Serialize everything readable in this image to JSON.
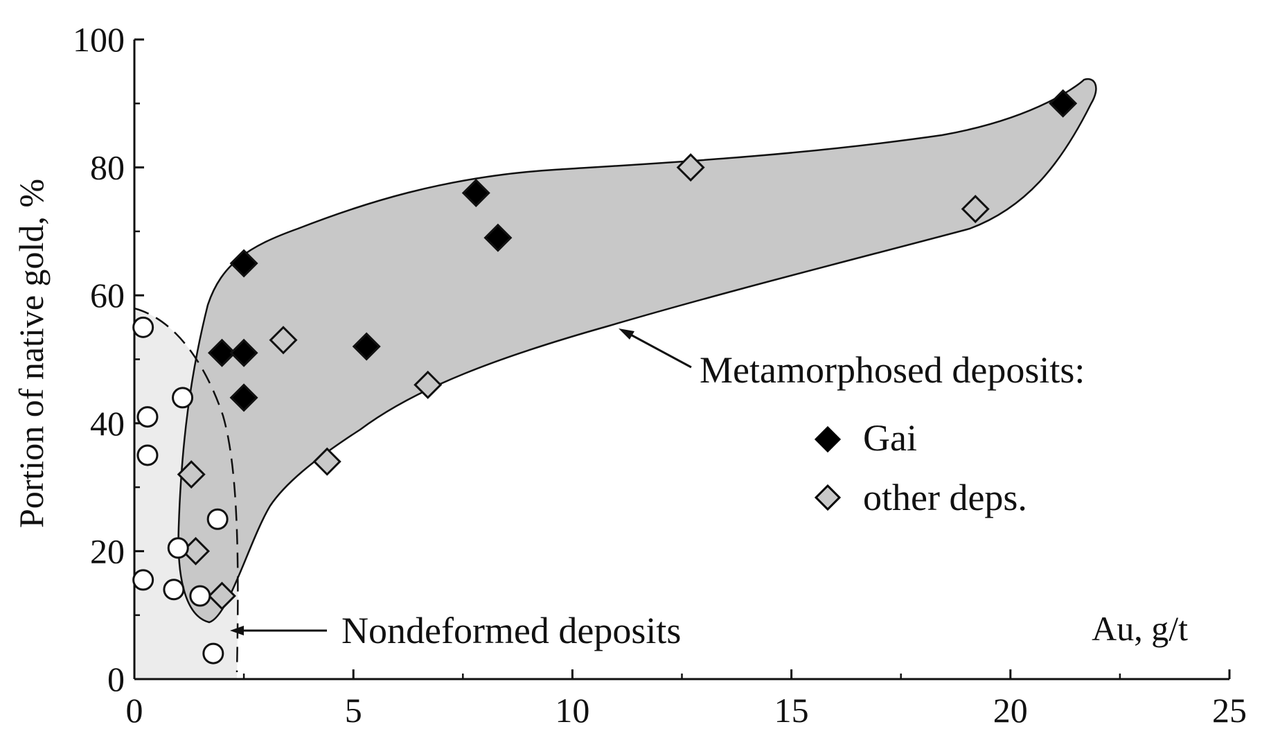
{
  "chart_data": {
    "type": "scatter",
    "ylabel": "Portion of native gold, %",
    "xlabel": "Au, g/t",
    "xlim": [
      0,
      25
    ],
    "ylim": [
      0,
      100
    ],
    "x_ticks": [
      "0",
      "5",
      "10",
      "15",
      "20",
      "25"
    ],
    "y_ticks": [
      "0",
      "20",
      "40",
      "60",
      "80",
      "100"
    ],
    "grid": false,
    "legend_placement": "right, middle",
    "legend_title": "Metamorphosed deposits:",
    "series": [
      {
        "name": "Gai",
        "marker": "diamond",
        "color": "#000000",
        "points": [
          {
            "x": 2.0,
            "y": 51
          },
          {
            "x": 2.5,
            "y": 51
          },
          {
            "x": 2.5,
            "y": 65
          },
          {
            "x": 2.5,
            "y": 44
          },
          {
            "x": 5.3,
            "y": 52
          },
          {
            "x": 7.8,
            "y": 76
          },
          {
            "x": 8.3,
            "y": 69
          },
          {
            "x": 21.2,
            "y": 90
          }
        ]
      },
      {
        "name": "other deps.",
        "marker": "diamond",
        "color": "#c8c8c8",
        "points": [
          {
            "x": 1.3,
            "y": 32
          },
          {
            "x": 1.4,
            "y": 20
          },
          {
            "x": 2.0,
            "y": 13
          },
          {
            "x": 3.4,
            "y": 53
          },
          {
            "x": 4.4,
            "y": 34
          },
          {
            "x": 6.7,
            "y": 46
          },
          {
            "x": 12.7,
            "y": 80
          },
          {
            "x": 19.2,
            "y": 73.5
          }
        ]
      },
      {
        "marker": "circle",
        "color": "#ffffff",
        "points": [
          {
            "x": 0.2,
            "y": 55
          },
          {
            "x": 0.3,
            "y": 41
          },
          {
            "x": 0.3,
            "y": 35
          },
          {
            "x": 1.1,
            "y": 44
          },
          {
            "x": 1.9,
            "y": 25
          },
          {
            "x": 1.0,
            "y": 20.5
          },
          {
            "x": 0.2,
            "y": 15.5
          },
          {
            "x": 0.9,
            "y": 14
          },
          {
            "x": 1.5,
            "y": 13
          },
          {
            "x": 1.8,
            "y": 4
          }
        ]
      }
    ],
    "annotations": [
      {
        "text": "Metamorphosed deposits:",
        "target": "shaded region of metamorphosed deposits"
      },
      {
        "text": "Nondeformed deposits",
        "target": "dashed region of nondeformed deposits"
      }
    ],
    "regions": {
      "metamorphosed_fill": "#c8c8c8",
      "nondeformed_fill": "#ececec"
    }
  }
}
